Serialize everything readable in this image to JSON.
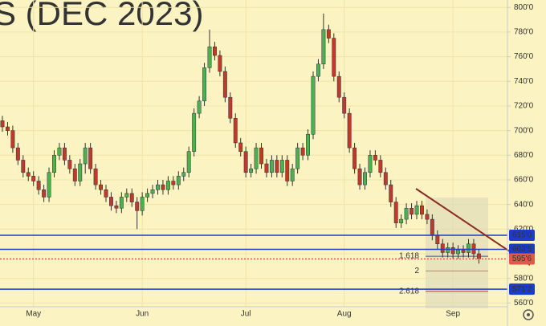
{
  "chart_data": {
    "type": "candlestick",
    "title": "S (DEC 2023)",
    "categories": [
      null,
      null,
      null,
      null,
      null,
      null,
      "May",
      null,
      null,
      null,
      null,
      null,
      null,
      null,
      null,
      null,
      null,
      null,
      null,
      null,
      null,
      null,
      null,
      null,
      null,
      null,
      null,
      "Jun",
      null,
      null,
      null,
      null,
      null,
      null,
      null,
      null,
      null,
      null,
      null,
      null,
      null,
      null,
      null,
      null,
      null,
      null,
      null,
      "Jul",
      null,
      null,
      null,
      null,
      null,
      null,
      null,
      null,
      null,
      null,
      null,
      null,
      null,
      null,
      null,
      null,
      null,
      null,
      "Aug",
      null,
      null,
      null,
      null,
      null,
      null,
      null,
      null,
      null,
      null,
      null,
      null,
      null,
      null,
      null,
      null,
      null,
      null,
      null,
      null,
      "Sep",
      null,
      null,
      null,
      null,
      null
    ],
    "open": [
      708,
      703,
      700,
      686,
      676,
      666,
      663,
      659,
      652,
      646,
      666,
      680,
      686,
      676,
      669,
      659,
      673,
      686,
      669,
      656,
      652,
      646,
      639,
      637,
      646,
      649,
      642,
      635,
      646,
      649,
      652,
      656,
      652,
      659,
      656,
      663,
      666,
      683,
      714,
      724,
      751,
      768,
      761,
      748,
      727,
      710,
      690,
      683,
      666,
      669,
      686,
      673,
      666,
      676,
      666,
      676,
      659,
      669,
      686,
      680,
      697,
      744,
      754,
      782,
      775,
      744,
      727,
      714,
      686,
      669,
      656,
      666,
      680,
      676,
      666,
      656,
      642,
      625,
      628,
      637,
      632,
      639,
      632,
      628,
      615,
      608,
      601,
      605,
      600,
      603,
      601,
      608,
      600
    ],
    "high": [
      712,
      707,
      704,
      690,
      680,
      670,
      667,
      663,
      656,
      670,
      684,
      690,
      690,
      680,
      673,
      677,
      690,
      690,
      673,
      660,
      656,
      650,
      643,
      650,
      653,
      653,
      646,
      650,
      653,
      656,
      660,
      660,
      663,
      663,
      667,
      670,
      687,
      718,
      728,
      755,
      782,
      772,
      765,
      752,
      731,
      714,
      694,
      687,
      673,
      690,
      690,
      677,
      680,
      680,
      680,
      680,
      673,
      690,
      690,
      701,
      748,
      758,
      795,
      786,
      779,
      748,
      731,
      718,
      690,
      673,
      670,
      684,
      684,
      680,
      670,
      660,
      646,
      632,
      641,
      641,
      643,
      643,
      636,
      632,
      619,
      612,
      609,
      609,
      607,
      607,
      612,
      612,
      604
    ],
    "low": [
      699,
      696,
      682,
      672,
      662,
      659,
      655,
      648,
      642,
      642,
      662,
      676,
      672,
      665,
      655,
      655,
      665,
      665,
      652,
      648,
      642,
      635,
      633,
      633,
      642,
      638,
      620,
      631,
      642,
      645,
      648,
      648,
      648,
      652,
      652,
      659,
      662,
      679,
      710,
      720,
      747,
      757,
      744,
      723,
      706,
      686,
      679,
      662,
      662,
      665,
      669,
      662,
      662,
      662,
      662,
      655,
      655,
      665,
      676,
      676,
      693,
      740,
      750,
      771,
      740,
      723,
      710,
      682,
      665,
      652,
      652,
      662,
      672,
      662,
      652,
      638,
      621,
      621,
      624,
      628,
      628,
      628,
      624,
      611,
      604,
      597,
      597,
      596,
      596,
      597,
      597,
      596,
      592
    ],
    "close": [
      703,
      700,
      686,
      676,
      666,
      663,
      659,
      652,
      646,
      666,
      680,
      686,
      676,
      669,
      659,
      673,
      686,
      669,
      656,
      652,
      646,
      639,
      637,
      646,
      649,
      642,
      635,
      646,
      649,
      652,
      656,
      652,
      659,
      656,
      663,
      666,
      683,
      714,
      724,
      751,
      768,
      761,
      748,
      727,
      710,
      690,
      683,
      666,
      669,
      686,
      673,
      666,
      676,
      666,
      676,
      659,
      669,
      686,
      680,
      697,
      744,
      754,
      782,
      775,
      744,
      727,
      714,
      686,
      669,
      656,
      666,
      680,
      676,
      666,
      656,
      642,
      625,
      628,
      637,
      632,
      639,
      632,
      628,
      615,
      608,
      601,
      605,
      600,
      603,
      601,
      608,
      600,
      596
    ],
    "up_color": "#4caf50",
    "down_color": "#c0392b",
    "ylim": [
      557,
      806
    ],
    "yticks": [
      {
        "value": 800,
        "label": "800'0"
      },
      {
        "value": 780,
        "label": "780'0"
      },
      {
        "value": 760,
        "label": "760'0"
      },
      {
        "value": 740,
        "label": "740'0"
      },
      {
        "value": 720,
        "label": "720'0"
      },
      {
        "value": 700,
        "label": "700'0"
      },
      {
        "value": 680,
        "label": "680'0"
      },
      {
        "value": 660,
        "label": "660'0"
      },
      {
        "value": 640,
        "label": "640'0"
      },
      {
        "value": 620,
        "label": "620'0"
      },
      {
        "value": 600,
        "label": "600'0"
      },
      {
        "value": 580,
        "label": "580'0"
      },
      {
        "value": 560,
        "label": "560'0"
      }
    ],
    "grid": true,
    "levels": [
      {
        "value": 615,
        "label": "615'0",
        "color": "#1a3cc8"
      },
      {
        "value": 603.625,
        "label": "603'5",
        "color": "#1a3cc8"
      },
      {
        "value": 595.75,
        "label": "595'6",
        "color": "#e05a4a"
      },
      {
        "value": 571.25,
        "label": "571'2",
        "color": "#1a3cc8"
      }
    ],
    "fib_levels": [
      {
        "value": 598,
        "label": "1.618",
        "color": "#3355cc"
      },
      {
        "value": 586,
        "label": "2",
        "color": "#2ecc71"
      },
      {
        "value": 569.5,
        "label": "2.618",
        "color": "#c0392b"
      }
    ]
  }
}
